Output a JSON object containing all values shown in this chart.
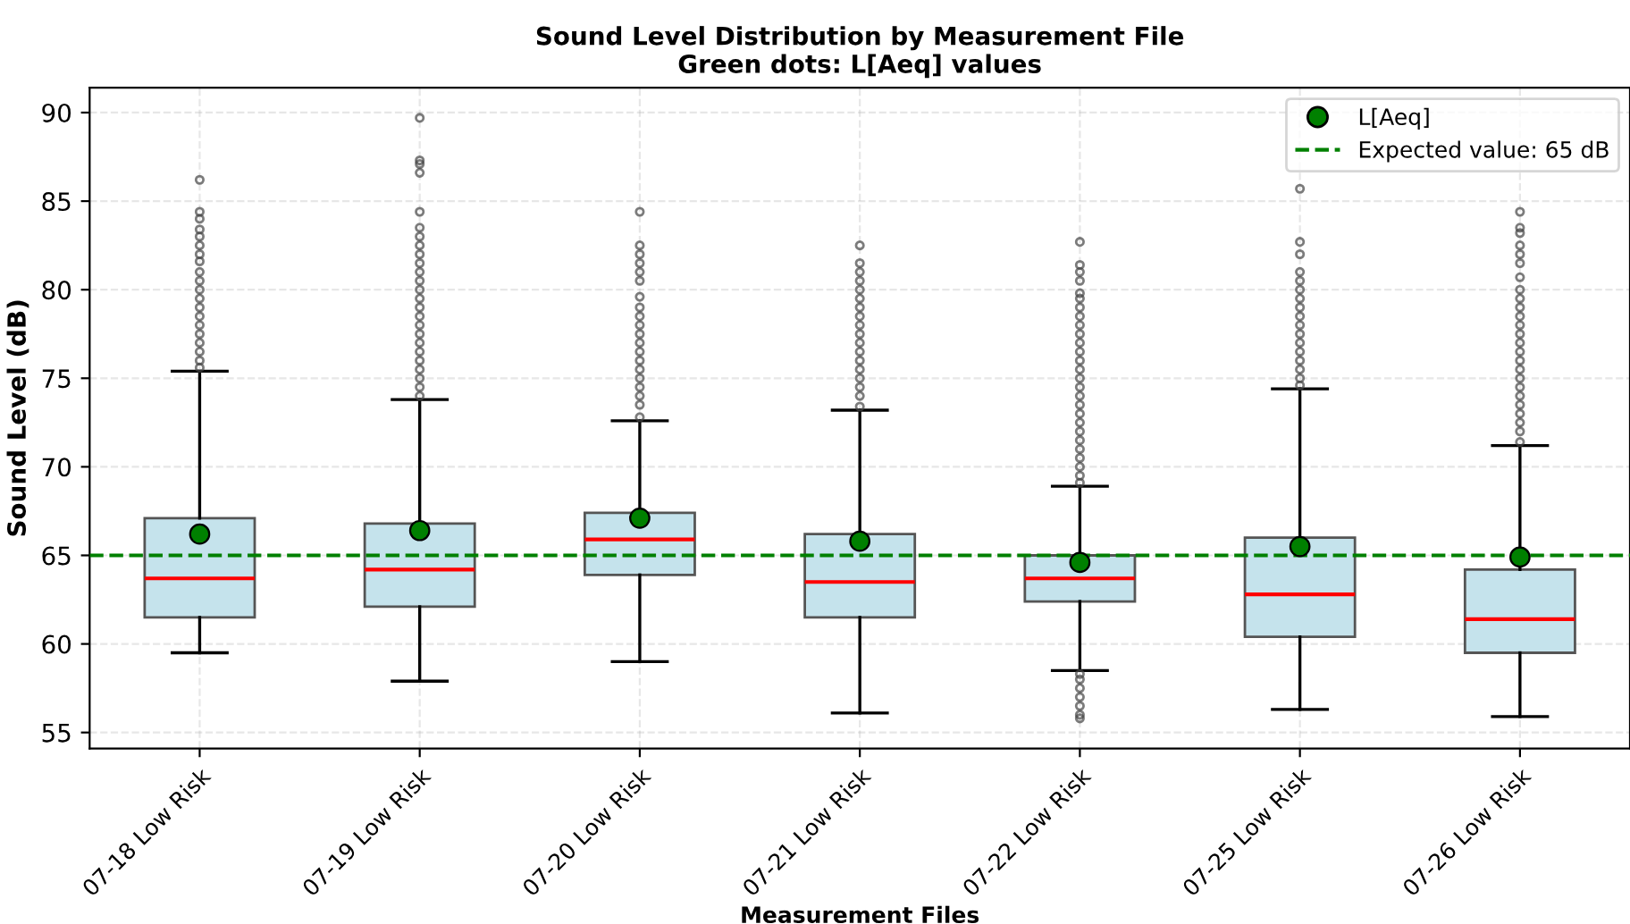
{
  "chart_data": {
    "type": "box",
    "title": "Sound Level Distribution by Measurement File",
    "subtitle": "Green dots: L[Aeq] values",
    "xlabel": "Measurement Files",
    "ylabel": "Sound Level (dB)",
    "categories": [
      "07-18 Low Risk",
      "07-19 Low Risk",
      "07-20 Low Risk",
      "07-21 Low Risk",
      "07-22 Low Risk",
      "07-25 Low Risk",
      "07-26 Low Risk"
    ],
    "ylim": [
      54.1,
      91.4
    ],
    "yticks": [
      55,
      60,
      65,
      70,
      75,
      80,
      85,
      90
    ],
    "grid": true,
    "legend": "top right",
    "series": [
      {
        "color": "#c5e3ec",
        "boxes": [
          {
            "low": 59.5,
            "q1": 61.5,
            "median": 63.7,
            "q3": 67.1,
            "high": 75.4,
            "outliers": [
              75.6,
              76,
              76.5,
              77,
              77.5,
              78,
              78.5,
              79,
              79.5,
              80,
              80.5,
              81,
              81.6,
              82.0,
              82.5,
              83.0,
              83.4,
              84.0,
              84.4,
              86.2
            ]
          },
          {
            "low": 57.9,
            "q1": 62.1,
            "median": 64.2,
            "q3": 66.8,
            "high": 73.8,
            "outliers": [
              74,
              74.5,
              75,
              75.5,
              76,
              76.5,
              77,
              77.5,
              78,
              78.5,
              79,
              79.5,
              80,
              80.5,
              81,
              81.5,
              82,
              82.5,
              83,
              83.5,
              84.4,
              86.6,
              87.1,
              87.3,
              89.7
            ]
          },
          {
            "low": 59.0,
            "q1": 63.9,
            "median": 65.9,
            "q3": 67.4,
            "high": 72.6,
            "outliers": [
              72.8,
              73.5,
              74,
              74.5,
              75,
              75.5,
              76,
              76.5,
              77,
              77.5,
              78,
              78.5,
              79,
              79.6,
              80.5,
              81,
              81.5,
              82,
              82.5,
              84.4
            ]
          },
          {
            "low": 56.1,
            "q1": 61.5,
            "median": 63.5,
            "q3": 66.2,
            "high": 73.2,
            "outliers": [
              73.4,
              74,
              74.5,
              75,
              75.5,
              76,
              76.5,
              77,
              77.5,
              78,
              78.5,
              79,
              79.5,
              80,
              80.5,
              81,
              81.5,
              82.5
            ]
          },
          {
            "low": 58.5,
            "q1": 62.4,
            "median": 63.7,
            "q3": 65.0,
            "high": 68.9,
            "outliers": [
              69.1,
              69.5,
              70,
              70.5,
              71,
              71.5,
              72,
              72.5,
              73,
              73.5,
              74,
              74.5,
              75,
              75.5,
              76,
              76.5,
              77,
              77.5,
              78,
              78.5,
              79,
              79.5,
              79.8,
              80.5,
              81,
              81.4,
              82.7,
              58.3,
              58,
              57.5,
              57,
              56.5,
              56,
              55.8
            ]
          },
          {
            "low": 56.3,
            "q1": 60.4,
            "median": 62.8,
            "q3": 66.0,
            "high": 74.4,
            "outliers": [
              74.6,
              75,
              75.5,
              76,
              76.5,
              77,
              77.5,
              78,
              78.5,
              79,
              79.5,
              80,
              80.5,
              81,
              82,
              82.7,
              85.7
            ]
          },
          {
            "low": 55.9,
            "q1": 59.5,
            "median": 61.4,
            "q3": 64.2,
            "high": 71.2,
            "outliers": [
              71.4,
              72,
              72.5,
              73,
              73.5,
              74,
              74.5,
              75,
              75.5,
              76,
              76.5,
              77,
              77.5,
              78,
              78.5,
              79,
              79.5,
              80,
              80.7,
              81.5,
              82,
              82.5,
              83.2,
              83.5,
              84.4
            ]
          }
        ]
      },
      {
        "type": "scatter",
        "name": "L[Aeq]",
        "color": "#008000",
        "marker": "circle",
        "x": [
          "07-18 Low Risk",
          "07-19 Low Risk",
          "07-20 Low Risk",
          "07-21 Low Risk",
          "07-22 Low Risk",
          "07-25 Low Risk",
          "07-26 Low Risk"
        ],
        "values": [
          66.2,
          66.4,
          67.1,
          65.8,
          64.6,
          65.5,
          64.9
        ]
      }
    ],
    "ref_lines": [
      {
        "axis": "y",
        "value": 65,
        "label": "Expected value: 65 dB",
        "color": "#008000",
        "line_style": "dashed"
      }
    ]
  }
}
